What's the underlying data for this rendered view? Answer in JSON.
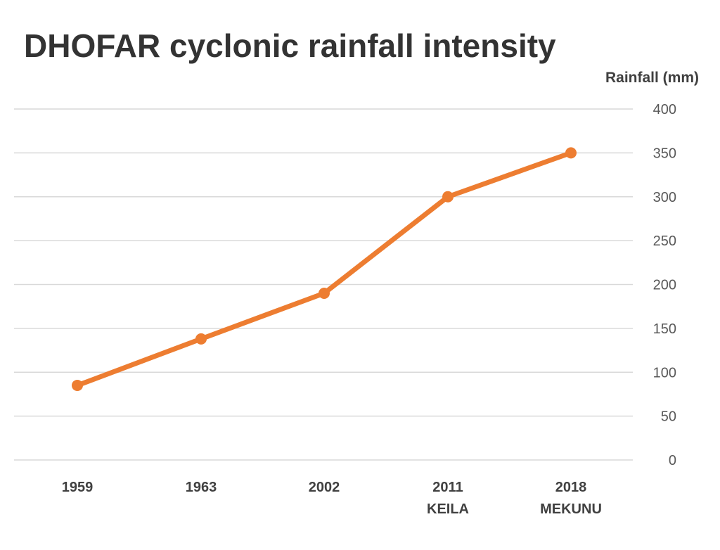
{
  "chart_data": {
    "type": "line",
    "title": "DHOFAR cyclonic rainfall intensity",
    "ylabel": "Rainfall (mm)",
    "xlabel": "",
    "categories": [
      [
        "1959"
      ],
      [
        "1963"
      ],
      [
        "2002"
      ],
      [
        "2011",
        "KEILA"
      ],
      [
        "2018",
        "MEKUNU"
      ]
    ],
    "series": [
      {
        "values": [
          85,
          138,
          190,
          300,
          350
        ],
        "color": "#ED7D31"
      }
    ],
    "ylim": [
      0,
      400
    ],
    "yticks": [
      0,
      50,
      100,
      150,
      200,
      250,
      300,
      350,
      400
    ],
    "ytick_labels": [
      "0",
      "50",
      "100",
      "150",
      "200",
      "250",
      "300",
      "350",
      "400"
    ],
    "y_axis_position": "right",
    "grid": true,
    "legend": "none"
  }
}
